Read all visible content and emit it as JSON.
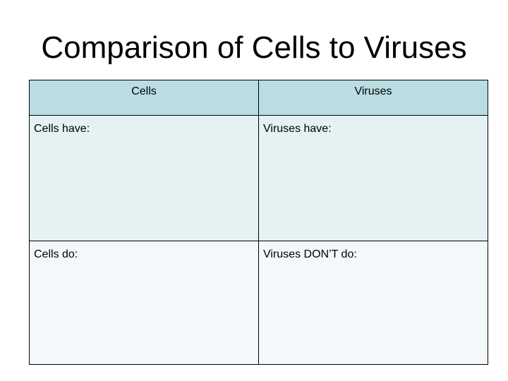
{
  "slide": {
    "title": "Comparison of Cells to Viruses"
  },
  "table": {
    "headers": [
      "Cells",
      "Viruses"
    ],
    "rows": [
      [
        "Cells have:",
        "Viruses have:"
      ],
      [
        "Cells do:",
        "Viruses DON’T do:"
      ]
    ],
    "colors": {
      "header_fill": "#b9dde2",
      "row1_fill": "#e6f1f4",
      "row2_fill": "#f3f8fb",
      "border": "#000000"
    }
  }
}
